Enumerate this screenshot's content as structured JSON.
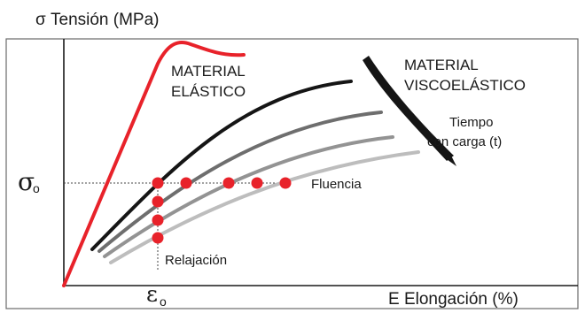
{
  "labels": {
    "y_axis": "σ Tensión (MPa)",
    "x_axis": "E Elongación (%)",
    "sigma_o_main": "σ",
    "sigma_o_sub": "o",
    "epsilon_o_main": "ε",
    "epsilon_o_sub": "o",
    "material_elastico_line1": "MATERIAL",
    "material_elastico_line2": "ELÁSTICO",
    "material_visco_line1": "MATERIAL",
    "material_visco_line2": "VISCOELÁSTICO",
    "tiempo_line1": "Tiempo",
    "tiempo_line2": "con carga (t)",
    "fluencia": "Fluencia",
    "relajacion": "Relajación"
  },
  "colors": {
    "elastic_curve": "#e8222a",
    "points": "#e8222a",
    "viscoelastic_curves": [
      "#151515",
      "#6e6e6e",
      "#939393",
      "#bdbdbd"
    ],
    "time_arrow": "#151515",
    "guide_lines": "#444444",
    "axes": "#1a1a1a",
    "frame": "#6a6a6a"
  }
}
